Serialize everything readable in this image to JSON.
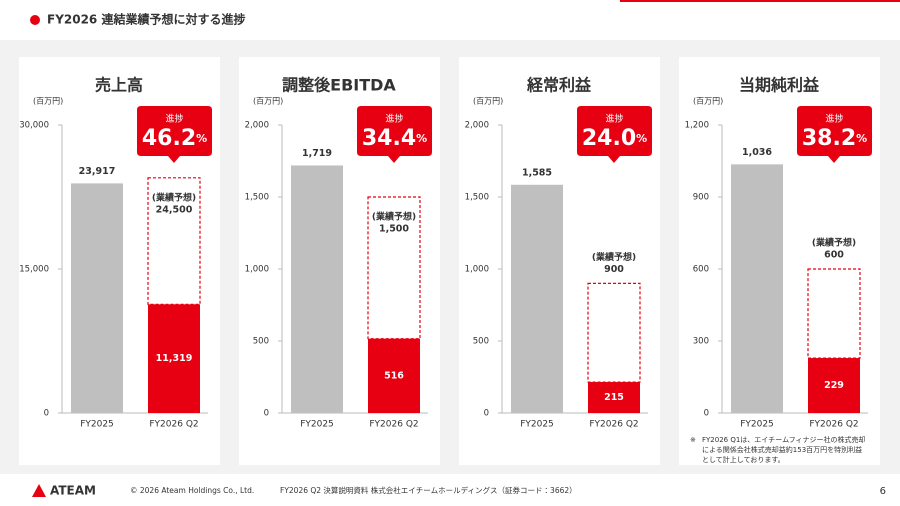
{
  "header": {
    "title": "FY2026 連結業績予想に対する進捗"
  },
  "chart_data": [
    {
      "type": "bar",
      "title": "売上高",
      "unit": "(百万円)",
      "categories": [
        "FY2025",
        "FY2026 Q2"
      ],
      "values": [
        23917,
        11319
      ],
      "value_labels": [
        "23,917",
        "11,319"
      ],
      "colors": [
        "#bfbfbf",
        "#e60012"
      ],
      "forecast": {
        "label": "(業績予想)",
        "value": 24500,
        "value_label": "24,500"
      },
      "progress_label": "進捗",
      "progress": 46.2,
      "progress_unit": "%",
      "ylim": [
        0,
        30000
      ],
      "yticks": [
        0,
        {
          "value": 15000,
          "label": "15,000"
        },
        {
          "value": 30000,
          "label": "30,000"
        }
      ]
    },
    {
      "type": "bar",
      "title": "調整後EBITDA",
      "unit": "(百万円)",
      "categories": [
        "FY2025",
        "FY2026 Q2"
      ],
      "values": [
        1719,
        516
      ],
      "value_labels": [
        "1,719",
        "516"
      ],
      "colors": [
        "#bfbfbf",
        "#e60012"
      ],
      "forecast": {
        "label": "(業績予想)",
        "value": 1500,
        "value_label": "1,500"
      },
      "progress_label": "進捗",
      "progress": 34.4,
      "progress_unit": "%",
      "ylim": [
        0,
        2000
      ],
      "yticks": [
        0,
        500,
        {
          "value": 1000,
          "label": "1,000"
        },
        {
          "value": 1500,
          "label": "1,500"
        },
        {
          "value": 2000,
          "label": "2,000"
        }
      ]
    },
    {
      "type": "bar",
      "title": "経常利益",
      "unit": "(百万円)",
      "categories": [
        "FY2025",
        "FY2026 Q2"
      ],
      "values": [
        1585,
        215
      ],
      "value_labels": [
        "1,585",
        "215"
      ],
      "colors": [
        "#bfbfbf",
        "#e60012"
      ],
      "forecast": {
        "label": "(業績予想)",
        "value": 900,
        "value_label": "900"
      },
      "progress_label": "進捗",
      "progress": 24.0,
      "progress_unit": "%",
      "progress_text": "24.0",
      "ylim": [
        0,
        2000
      ],
      "yticks": [
        0,
        500,
        {
          "value": 1000,
          "label": "1,000"
        },
        {
          "value": 1500,
          "label": "1,500"
        },
        {
          "value": 2000,
          "label": "2,000"
        }
      ]
    },
    {
      "type": "bar",
      "title": "当期純利益",
      "unit": "(百万円)",
      "categories": [
        "FY2025",
        "FY2026 Q2"
      ],
      "values": [
        1036,
        229
      ],
      "value_labels": [
        "1,036",
        "229"
      ],
      "colors": [
        "#bfbfbf",
        "#e60012"
      ],
      "forecast": {
        "label": "(業績予想)",
        "value": 600,
        "value_label": "600"
      },
      "progress_label": "進捗",
      "progress": 38.2,
      "progress_unit": "%",
      "ylim": [
        0,
        1200
      ],
      "yticks": [
        0,
        300,
        600,
        900,
        {
          "value": 1200,
          "label": "1,200"
        }
      ]
    }
  ],
  "note": {
    "mark": "※",
    "lines": [
      "FY2026 Q1は、エイチームフィナジー社の株式売却",
      "による関係会社株式売却益約153百万円を特別利益",
      "として計上しております。"
    ]
  },
  "footer": {
    "logo": "ATEAM",
    "copyright": "© 2026 Ateam Holdings Co., Ltd.",
    "document": "FY2026 Q2 決算説明資料 株式会社エイチームホールディングス（証券コード：3662）",
    "page": "6"
  }
}
